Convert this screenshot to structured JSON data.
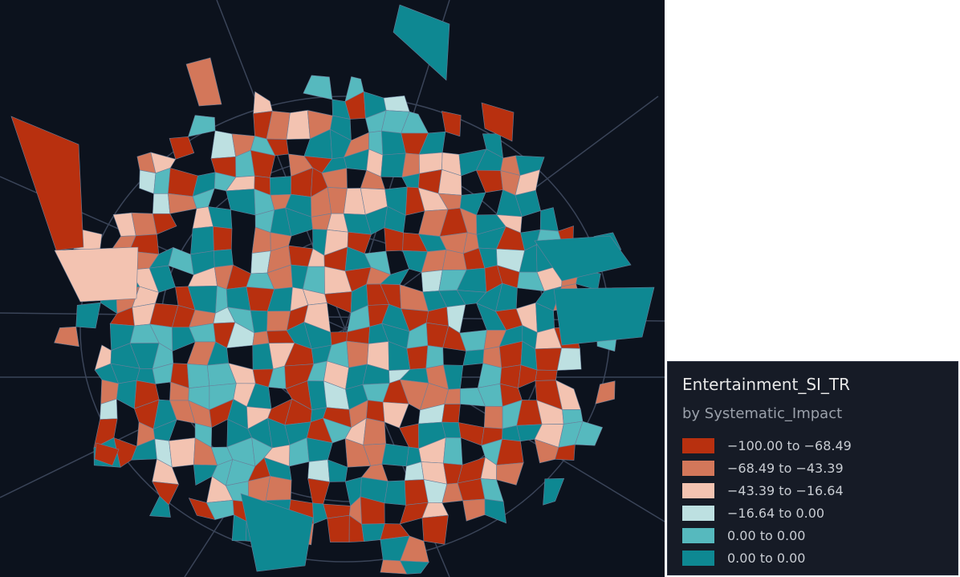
{
  "legend": {
    "title": "Entertainment_SI_TR",
    "subtitle": "by Systematic_Impact",
    "items": [
      {
        "label": "−100.00 to −68.49",
        "color": "#b8300f"
      },
      {
        "label": "−68.49 to −43.39",
        "color": "#d3775a"
      },
      {
        "label": "−43.39 to −16.64",
        "color": "#f3c3b1"
      },
      {
        "label": "−16.64 to 0.00",
        "color": "#bde0e1"
      },
      {
        "label": "0.00 to 0.00",
        "color": "#56b9be"
      },
      {
        "label": "0.00 to 0.00",
        "color": "#0e8892"
      }
    ]
  }
}
